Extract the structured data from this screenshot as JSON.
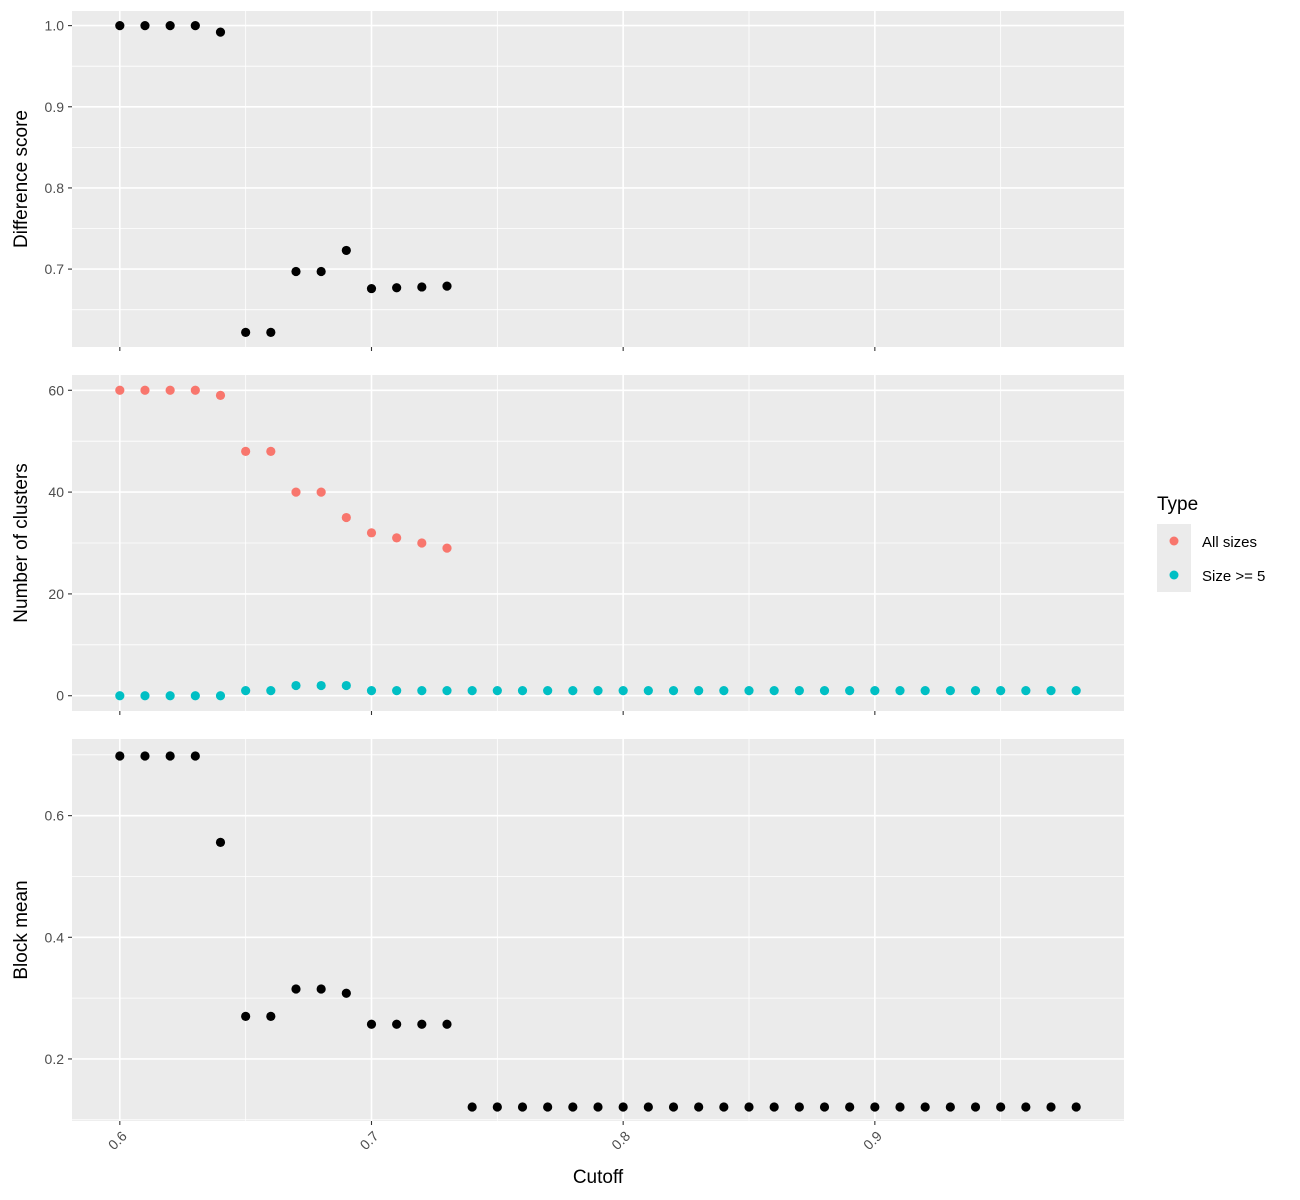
{
  "chart_data": {
    "type": "scatter",
    "x_label": "Cutoff",
    "x_ticks": [
      "0.6",
      "0.7",
      "0.8",
      "0.9"
    ],
    "x_tick_values": [
      0.6,
      0.7,
      0.8,
      0.9
    ],
    "xlim": [
      0.581,
      0.999
    ],
    "grid": true,
    "legend": {
      "title": "Type",
      "placement": "right",
      "entries": [
        {
          "label": "All sizes",
          "color": "#F8766D"
        },
        {
          "label": "Size >= 5",
          "color": "#00BFC4"
        }
      ]
    },
    "panels": [
      {
        "ylabel": "Difference score",
        "ylim": [
          0.604,
          1.018
        ],
        "y_ticks": [
          "0.7",
          "0.8",
          "0.9",
          "1.0"
        ],
        "y_tick_values": [
          0.7,
          0.8,
          0.9,
          1.0
        ],
        "series": [
          {
            "color": "#000000",
            "points": [
              [
                0.6,
                1.0
              ],
              [
                0.61,
                1.0
              ],
              [
                0.62,
                1.0
              ],
              [
                0.63,
                1.0
              ],
              [
                0.64,
                0.992
              ],
              [
                0.65,
                0.622
              ],
              [
                0.66,
                0.622
              ],
              [
                0.67,
                0.697
              ],
              [
                0.68,
                0.697
              ],
              [
                0.69,
                0.723
              ],
              [
                0.7,
                0.676
              ],
              [
                0.71,
                0.677
              ],
              [
                0.72,
                0.678
              ],
              [
                0.73,
                0.679
              ]
            ]
          }
        ]
      },
      {
        "ylabel": "Number of clusters",
        "ylim": [
          -3,
          63
        ],
        "y_ticks": [
          "0",
          "20",
          "40",
          "60"
        ],
        "y_tick_values": [
          0,
          20,
          40,
          60
        ],
        "series": [
          {
            "name": "All sizes",
            "color": "#F8766D",
            "points": [
              [
                0.6,
                60
              ],
              [
                0.61,
                60
              ],
              [
                0.62,
                60
              ],
              [
                0.63,
                60
              ],
              [
                0.64,
                59
              ],
              [
                0.65,
                48
              ],
              [
                0.66,
                48
              ],
              [
                0.67,
                40
              ],
              [
                0.68,
                40
              ],
              [
                0.69,
                35
              ],
              [
                0.7,
                32
              ],
              [
                0.71,
                31
              ],
              [
                0.72,
                30
              ],
              [
                0.73,
                29
              ]
            ]
          },
          {
            "name": "Size >= 5",
            "color": "#00BFC4",
            "points": [
              [
                0.6,
                0
              ],
              [
                0.61,
                0
              ],
              [
                0.62,
                0
              ],
              [
                0.63,
                0
              ],
              [
                0.64,
                0
              ],
              [
                0.65,
                1
              ],
              [
                0.66,
                1
              ],
              [
                0.67,
                2
              ],
              [
                0.68,
                2
              ],
              [
                0.69,
                2
              ],
              [
                0.7,
                1
              ],
              [
                0.71,
                1
              ],
              [
                0.72,
                1
              ],
              [
                0.73,
                1
              ],
              [
                0.74,
                1
              ],
              [
                0.75,
                1
              ],
              [
                0.76,
                1
              ],
              [
                0.77,
                1
              ],
              [
                0.78,
                1
              ],
              [
                0.79,
                1
              ],
              [
                0.8,
                1
              ],
              [
                0.81,
                1
              ],
              [
                0.82,
                1
              ],
              [
                0.83,
                1
              ],
              [
                0.84,
                1
              ],
              [
                0.85,
                1
              ],
              [
                0.86,
                1
              ],
              [
                0.87,
                1
              ],
              [
                0.88,
                1
              ],
              [
                0.89,
                1
              ],
              [
                0.9,
                1
              ],
              [
                0.91,
                1
              ],
              [
                0.92,
                1
              ],
              [
                0.93,
                1
              ],
              [
                0.94,
                1
              ],
              [
                0.95,
                1
              ],
              [
                0.96,
                1
              ],
              [
                0.97,
                1
              ],
              [
                0.98,
                1
              ]
            ]
          }
        ]
      },
      {
        "ylabel": "Block mean",
        "ylim": [
          0.098,
          0.726
        ],
        "y_ticks": [
          "0.2",
          "0.4",
          "0.6"
        ],
        "y_tick_values": [
          0.2,
          0.4,
          0.6
        ],
        "series": [
          {
            "color": "#000000",
            "points": [
              [
                0.6,
                0.698
              ],
              [
                0.61,
                0.698
              ],
              [
                0.62,
                0.698
              ],
              [
                0.63,
                0.698
              ],
              [
                0.64,
                0.556
              ],
              [
                0.65,
                0.27
              ],
              [
                0.66,
                0.27
              ],
              [
                0.67,
                0.315
              ],
              [
                0.68,
                0.315
              ],
              [
                0.69,
                0.308
              ],
              [
                0.7,
                0.257
              ],
              [
                0.71,
                0.257
              ],
              [
                0.72,
                0.257
              ],
              [
                0.73,
                0.257
              ],
              [
                0.74,
                0.121
              ],
              [
                0.75,
                0.121
              ],
              [
                0.76,
                0.121
              ],
              [
                0.77,
                0.121
              ],
              [
                0.78,
                0.121
              ],
              [
                0.79,
                0.121
              ],
              [
                0.8,
                0.121
              ],
              [
                0.81,
                0.121
              ],
              [
                0.82,
                0.121
              ],
              [
                0.83,
                0.121
              ],
              [
                0.84,
                0.121
              ],
              [
                0.85,
                0.121
              ],
              [
                0.86,
                0.121
              ],
              [
                0.87,
                0.121
              ],
              [
                0.88,
                0.121
              ],
              [
                0.89,
                0.121
              ],
              [
                0.9,
                0.121
              ],
              [
                0.91,
                0.121
              ],
              [
                0.92,
                0.121
              ],
              [
                0.93,
                0.121
              ],
              [
                0.94,
                0.121
              ],
              [
                0.95,
                0.121
              ],
              [
                0.96,
                0.121
              ],
              [
                0.97,
                0.121
              ],
              [
                0.98,
                0.121
              ]
            ]
          }
        ]
      }
    ]
  }
}
